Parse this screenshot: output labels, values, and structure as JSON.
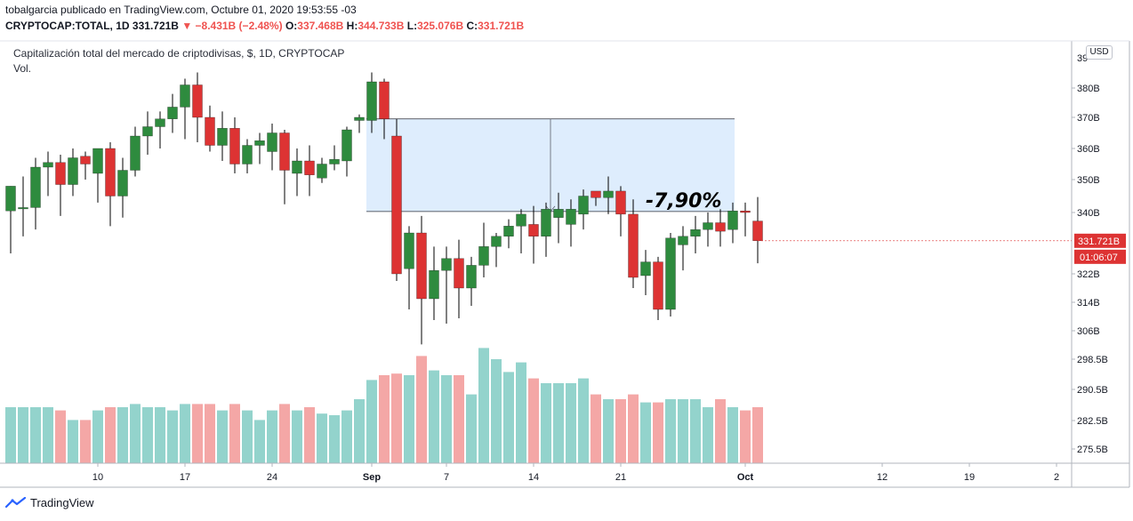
{
  "header": {
    "publisher_line": "tobalgarcia publicado en TradingView.com, Octubre 01, 2020 19:53:55 -03",
    "symbol": "CRYPTOCAP:TOTAL, 1D",
    "last": "331.721B",
    "change": "▼ −8.431B (−2.48%)",
    "o_label": "O:",
    "o_value": "337.468B",
    "h_label": "H:",
    "h_value": "344.733B",
    "l_label": "L:",
    "l_value": "325.076B",
    "c_label": "C:",
    "c_value": "331.721B"
  },
  "footer": {
    "brand": "TradingView"
  },
  "currency_button": "USD",
  "colors": {
    "up": "#2e8b3e",
    "down": "#dd3333",
    "vol_up": "#93d3cc",
    "vol_down": "#f4a7a6",
    "box_fill": "#deedfd",
    "box_stroke": "#2a2e39"
  },
  "chart_data": {
    "type": "candlestick",
    "title": "Capitalización total del mercado de criptodivisas, $, 1D, CRYPTOCAP",
    "volume_label": "Vol.",
    "y_axis_unit": "billions USD",
    "y_ticks": [
      {
        "v": 380,
        "label": "380B"
      },
      {
        "v": 370,
        "label": "370B"
      },
      {
        "v": 360,
        "label": "360B"
      },
      {
        "v": 350,
        "label": "350B"
      },
      {
        "v": 340,
        "label": "340B"
      },
      {
        "v": 322,
        "label": "322B"
      },
      {
        "v": 314,
        "label": "314B"
      },
      {
        "v": 306,
        "label": "306B"
      },
      {
        "v": 298.5,
        "label": "298.5B"
      },
      {
        "v": 290.5,
        "label": "290.5B"
      },
      {
        "v": 282.5,
        "label": "282.5B"
      },
      {
        "v": 275.5,
        "label": "275.5B"
      }
    ],
    "y_top_tick_partial": "39",
    "x_ticks": [
      {
        "i": 7,
        "label": "10",
        "bold": false
      },
      {
        "i": 14,
        "label": "17",
        "bold": false
      },
      {
        "i": 21,
        "label": "24",
        "bold": false
      },
      {
        "i": 29,
        "label": "Sep",
        "bold": true
      },
      {
        "i": 35,
        "label": "7",
        "bold": false
      },
      {
        "i": 42,
        "label": "14",
        "bold": false
      },
      {
        "i": 49,
        "label": "21",
        "bold": false
      },
      {
        "i": 59,
        "label": "Oct",
        "bold": true
      },
      {
        "i": 70,
        "label": "12",
        "bold": false
      },
      {
        "i": 77,
        "label": "19",
        "bold": false
      },
      {
        "i": 84,
        "label": "2",
        "bold": false
      }
    ],
    "last_price_label": "331.721B",
    "countdown_label": "01:06:07",
    "annotation": {
      "text": "-7,90%",
      "from_index": 29,
      "to_index": 58,
      "top": 369.5,
      "bottom": 340.3
    },
    "candles": [
      {
        "o": 340.5,
        "h": 348.0,
        "l": 328.0,
        "c": 348.0,
        "v": 35
      },
      {
        "o": 341.5,
        "h": 351.0,
        "l": 333.0,
        "c": 341.5,
        "v": 35
      },
      {
        "o": 341.5,
        "h": 357.0,
        "l": 335.0,
        "c": 354.0,
        "v": 35
      },
      {
        "o": 354.0,
        "h": 359.0,
        "l": 345.0,
        "c": 355.5,
        "v": 35
      },
      {
        "o": 355.5,
        "h": 358.0,
        "l": 339.0,
        "c": 348.5,
        "v": 33
      },
      {
        "o": 348.5,
        "h": 360.0,
        "l": 345.0,
        "c": 357.0,
        "v": 27
      },
      {
        "o": 357.5,
        "h": 359.0,
        "l": 350.0,
        "c": 355.0,
        "v": 27
      },
      {
        "o": 352.0,
        "h": 360.0,
        "l": 343.0,
        "c": 360.0,
        "v": 33
      },
      {
        "o": 360.0,
        "h": 362.0,
        "l": 336.0,
        "c": 345.0,
        "v": 35
      },
      {
        "o": 345.0,
        "h": 357.0,
        "l": 338.5,
        "c": 353.0,
        "v": 35
      },
      {
        "o": 353.0,
        "h": 367.0,
        "l": 351.0,
        "c": 364.0,
        "v": 37
      },
      {
        "o": 364.0,
        "h": 372.0,
        "l": 358.0,
        "c": 367.0,
        "v": 35
      },
      {
        "o": 367.0,
        "h": 372.0,
        "l": 360.0,
        "c": 369.5,
        "v": 35
      },
      {
        "o": 369.5,
        "h": 378.0,
        "l": 365.0,
        "c": 373.5,
        "v": 33
      },
      {
        "o": 373.5,
        "h": 383.0,
        "l": 363.0,
        "c": 381.0,
        "v": 37
      },
      {
        "o": 381.0,
        "h": 385.0,
        "l": 362.0,
        "c": 370.0,
        "v": 37
      },
      {
        "o": 370.0,
        "h": 374.0,
        "l": 359.0,
        "c": 361.0,
        "v": 37
      },
      {
        "o": 361.0,
        "h": 372.0,
        "l": 356.0,
        "c": 366.5,
        "v": 33
      },
      {
        "o": 366.5,
        "h": 370.0,
        "l": 352.0,
        "c": 355.0,
        "v": 37
      },
      {
        "o": 355.0,
        "h": 363.0,
        "l": 352.0,
        "c": 361.0,
        "v": 33
      },
      {
        "o": 361.0,
        "h": 365.0,
        "l": 355.0,
        "c": 362.5,
        "v": 27
      },
      {
        "o": 359.0,
        "h": 368.0,
        "l": 353.0,
        "c": 365.0,
        "v": 33
      },
      {
        "o": 365.0,
        "h": 366.0,
        "l": 342.5,
        "c": 353.0,
        "v": 37
      },
      {
        "o": 352.0,
        "h": 360.0,
        "l": 345.0,
        "c": 356.0,
        "v": 33
      },
      {
        "o": 356.0,
        "h": 361.0,
        "l": 345.0,
        "c": 351.5,
        "v": 35
      },
      {
        "o": 350.5,
        "h": 357.0,
        "l": 349.0,
        "c": 355.0,
        "v": 31
      },
      {
        "o": 355.0,
        "h": 361.0,
        "l": 353.0,
        "c": 356.5,
        "v": 30
      },
      {
        "o": 356.0,
        "h": 367.0,
        "l": 351.0,
        "c": 366.0,
        "v": 33
      },
      {
        "o": 369.0,
        "h": 371.0,
        "l": 365.0,
        "c": 370.0,
        "v": 40
      },
      {
        "o": 369.0,
        "h": 385.0,
        "l": 365.0,
        "c": 382.0,
        "v": 52
      },
      {
        "o": 382.0,
        "h": 383.0,
        "l": 363.0,
        "c": 369.5,
        "v": 55
      },
      {
        "o": 364.0,
        "h": 369.5,
        "l": 320.0,
        "c": 322.0,
        "v": 56
      },
      {
        "o": 323.5,
        "h": 336.0,
        "l": 312.0,
        "c": 334.0,
        "v": 55
      },
      {
        "o": 334.0,
        "h": 339.0,
        "l": 302.0,
        "c": 315.0,
        "v": 67
      },
      {
        "o": 315.0,
        "h": 330.0,
        "l": 309.0,
        "c": 323.0,
        "v": 58
      },
      {
        "o": 323.0,
        "h": 330.0,
        "l": 308.0,
        "c": 326.5,
        "v": 55
      },
      {
        "o": 326.5,
        "h": 332.0,
        "l": 309.5,
        "c": 318.0,
        "v": 55
      },
      {
        "o": 318.0,
        "h": 327.0,
        "l": 313.0,
        "c": 324.5,
        "v": 43
      },
      {
        "o": 324.5,
        "h": 337.0,
        "l": 321.0,
        "c": 330.0,
        "v": 72
      },
      {
        "o": 330.0,
        "h": 334.0,
        "l": 324.0,
        "c": 333.0,
        "v": 65
      },
      {
        "o": 333.0,
        "h": 338.0,
        "l": 329.5,
        "c": 336.0,
        "v": 57
      },
      {
        "o": 336.0,
        "h": 341.0,
        "l": 328.0,
        "c": 339.5,
        "v": 63
      },
      {
        "o": 336.5,
        "h": 342.0,
        "l": 325.0,
        "c": 333.0,
        "v": 53
      },
      {
        "o": 333.0,
        "h": 343.0,
        "l": 327.0,
        "c": 341.0,
        "v": 50
      },
      {
        "o": 338.5,
        "h": 346.0,
        "l": 331.0,
        "c": 341.0,
        "v": 50
      },
      {
        "o": 336.5,
        "h": 344.0,
        "l": 330.0,
        "c": 341.0,
        "v": 50
      },
      {
        "o": 339.5,
        "h": 347.0,
        "l": 335.0,
        "c": 345.0,
        "v": 53
      },
      {
        "o": 346.5,
        "h": 346.5,
        "l": 342.0,
        "c": 344.5,
        "v": 43
      },
      {
        "o": 344.5,
        "h": 351.0,
        "l": 339.5,
        "c": 346.5,
        "v": 40
      },
      {
        "o": 346.5,
        "h": 348.0,
        "l": 333.0,
        "c": 339.5,
        "v": 40
      },
      {
        "o": 339.5,
        "h": 344.0,
        "l": 318.0,
        "c": 321.0,
        "v": 43
      },
      {
        "o": 321.5,
        "h": 329.0,
        "l": 316.0,
        "c": 325.5,
        "v": 38
      },
      {
        "o": 325.5,
        "h": 327.0,
        "l": 309.0,
        "c": 312.0,
        "v": 38
      },
      {
        "o": 312.0,
        "h": 334.0,
        "l": 310.0,
        "c": 332.5,
        "v": 40
      },
      {
        "o": 330.5,
        "h": 336.0,
        "l": 323.0,
        "c": 333.0,
        "v": 40
      },
      {
        "o": 333.0,
        "h": 339.0,
        "l": 328.0,
        "c": 335.0,
        "v": 40
      },
      {
        "o": 335.0,
        "h": 340.0,
        "l": 330.0,
        "c": 337.0,
        "v": 35
      },
      {
        "o": 337.0,
        "h": 341.0,
        "l": 330.0,
        "c": 334.5,
        "v": 40
      },
      {
        "o": 335.0,
        "h": 343.0,
        "l": 331.0,
        "c": 340.5,
        "v": 35
      },
      {
        "o": 340.5,
        "h": 343.0,
        "l": 333.0,
        "c": 340.0,
        "v": 33
      },
      {
        "o": 337.5,
        "h": 344.7,
        "l": 325.1,
        "c": 331.7,
        "v": 35
      }
    ]
  }
}
